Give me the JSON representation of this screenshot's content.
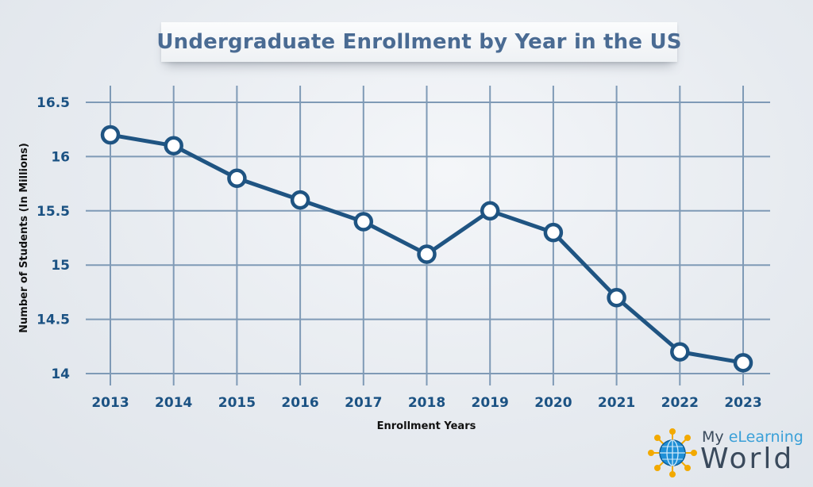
{
  "chart_data": {
    "type": "line",
    "title": "Undergraduate Enrollment by Year in the US",
    "xlabel": "Enrollment Years",
    "ylabel": "Number of Students (In Millions)",
    "categories": [
      "2013",
      "2014",
      "2015",
      "2016",
      "2017",
      "2018",
      "2019",
      "2020",
      "2021",
      "2022",
      "2023"
    ],
    "series": [
      {
        "values": [
          16.2,
          16.1,
          15.8,
          15.6,
          15.4,
          15.1,
          15.5,
          15.3,
          14.7,
          14.2,
          14.1
        ]
      }
    ],
    "ylim": [
      14,
      16.5
    ],
    "yticks": [
      "14",
      "14.5",
      "15",
      "15.5",
      "16",
      "16.5"
    ],
    "grid": true,
    "legend": "none",
    "colors": {
      "line": "#1f5482",
      "marker_fill": "#ffffff",
      "grid": "#7f9ab6",
      "tick_text": "#1b5283",
      "title_text": "#4a6b93"
    }
  },
  "logo": {
    "line1_prefix": "My ",
    "line1_accent": "eLearning",
    "line2": "World",
    "icon": "globe-network-icon"
  }
}
